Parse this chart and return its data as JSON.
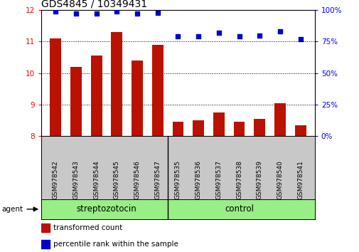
{
  "title": "GDS4845 / 10349431",
  "samples": [
    "GSM978542",
    "GSM978543",
    "GSM978544",
    "GSM978545",
    "GSM978546",
    "GSM978547",
    "GSM978535",
    "GSM978536",
    "GSM978537",
    "GSM978538",
    "GSM978539",
    "GSM978540",
    "GSM978541"
  ],
  "bar_values": [
    11.1,
    10.2,
    10.55,
    11.3,
    10.4,
    10.9,
    8.45,
    8.5,
    8.75,
    8.45,
    8.55,
    9.05,
    8.35
  ],
  "scatter_values": [
    99,
    97,
    97,
    99,
    97,
    98,
    79,
    79,
    82,
    79,
    80,
    83,
    77
  ],
  "bar_color": "#bb1100",
  "scatter_color": "#0000cc",
  "ylim_left": [
    8,
    12
  ],
  "ylim_right": [
    0,
    100
  ],
  "yticks_left": [
    8,
    9,
    10,
    11,
    12
  ],
  "yticks_right": [
    0,
    25,
    50,
    75,
    100
  ],
  "ytick_labels_right": [
    "0%",
    "25%",
    "50%",
    "75%",
    "100%"
  ],
  "group_label_1": "streptozotocin",
  "group_label_2": "control",
  "group_div": 5.5,
  "group_bar_color": "#99ee88",
  "agent_label": "agent",
  "legend_bar_label": "transformed count",
  "legend_scatter_label": "percentile rank within the sample",
  "tick_area_color": "#c8c8c8",
  "title_fontsize": 10,
  "tick_label_fontsize": 7.5,
  "bar_bottom": 8,
  "n_samples": 13,
  "group1_mid": 2.5,
  "group2_mid": 9.0
}
